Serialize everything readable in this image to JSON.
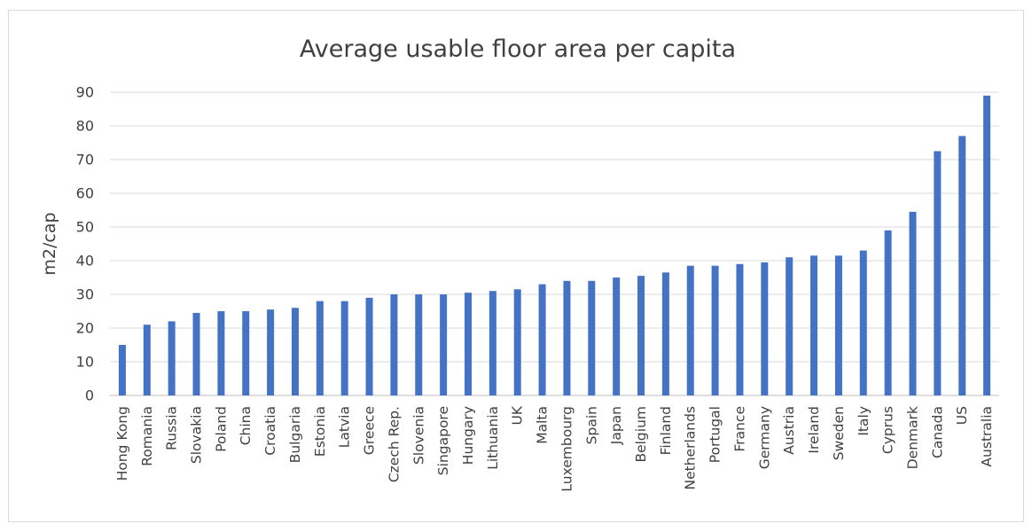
{
  "chart_data": {
    "type": "bar",
    "title": "Average usable floor area per capita",
    "ylabel": "m2/cap",
    "xlabel": "",
    "ylim": [
      0,
      90
    ],
    "yticks": [
      0,
      10,
      20,
      30,
      40,
      50,
      60,
      70,
      80,
      90
    ],
    "grid": true,
    "legend": "none",
    "bar_color": "#4472C4",
    "categories": [
      "Hong Kong",
      "Romania",
      "Russia",
      "Slovakia",
      "Poland",
      "China",
      "Croatia",
      "Bulgaria",
      "Estonia",
      "Latvia",
      "Greece",
      "Czech Rep.",
      "Slovenia",
      "Singapore",
      "Hungary",
      "Lithuania",
      "UK",
      "Malta",
      "Luxembourg",
      "Spain",
      "Japan",
      "Belgium",
      "Finland",
      "Netherlands",
      "Portugal",
      "France",
      "Germany",
      "Austria",
      "Ireland",
      "Sweden",
      "Italy",
      "Cyprus",
      "Denmark",
      "Canada",
      "US",
      "Australia"
    ],
    "values": [
      15,
      21,
      22,
      24.5,
      25,
      25,
      25.5,
      26,
      28,
      28,
      29,
      30,
      30,
      30,
      30.5,
      31,
      31.5,
      33,
      34,
      34,
      35,
      35.5,
      36.5,
      38.5,
      38.5,
      39,
      39.5,
      41,
      41.5,
      41.5,
      43,
      49,
      54.5,
      72.5,
      77,
      89
    ]
  }
}
